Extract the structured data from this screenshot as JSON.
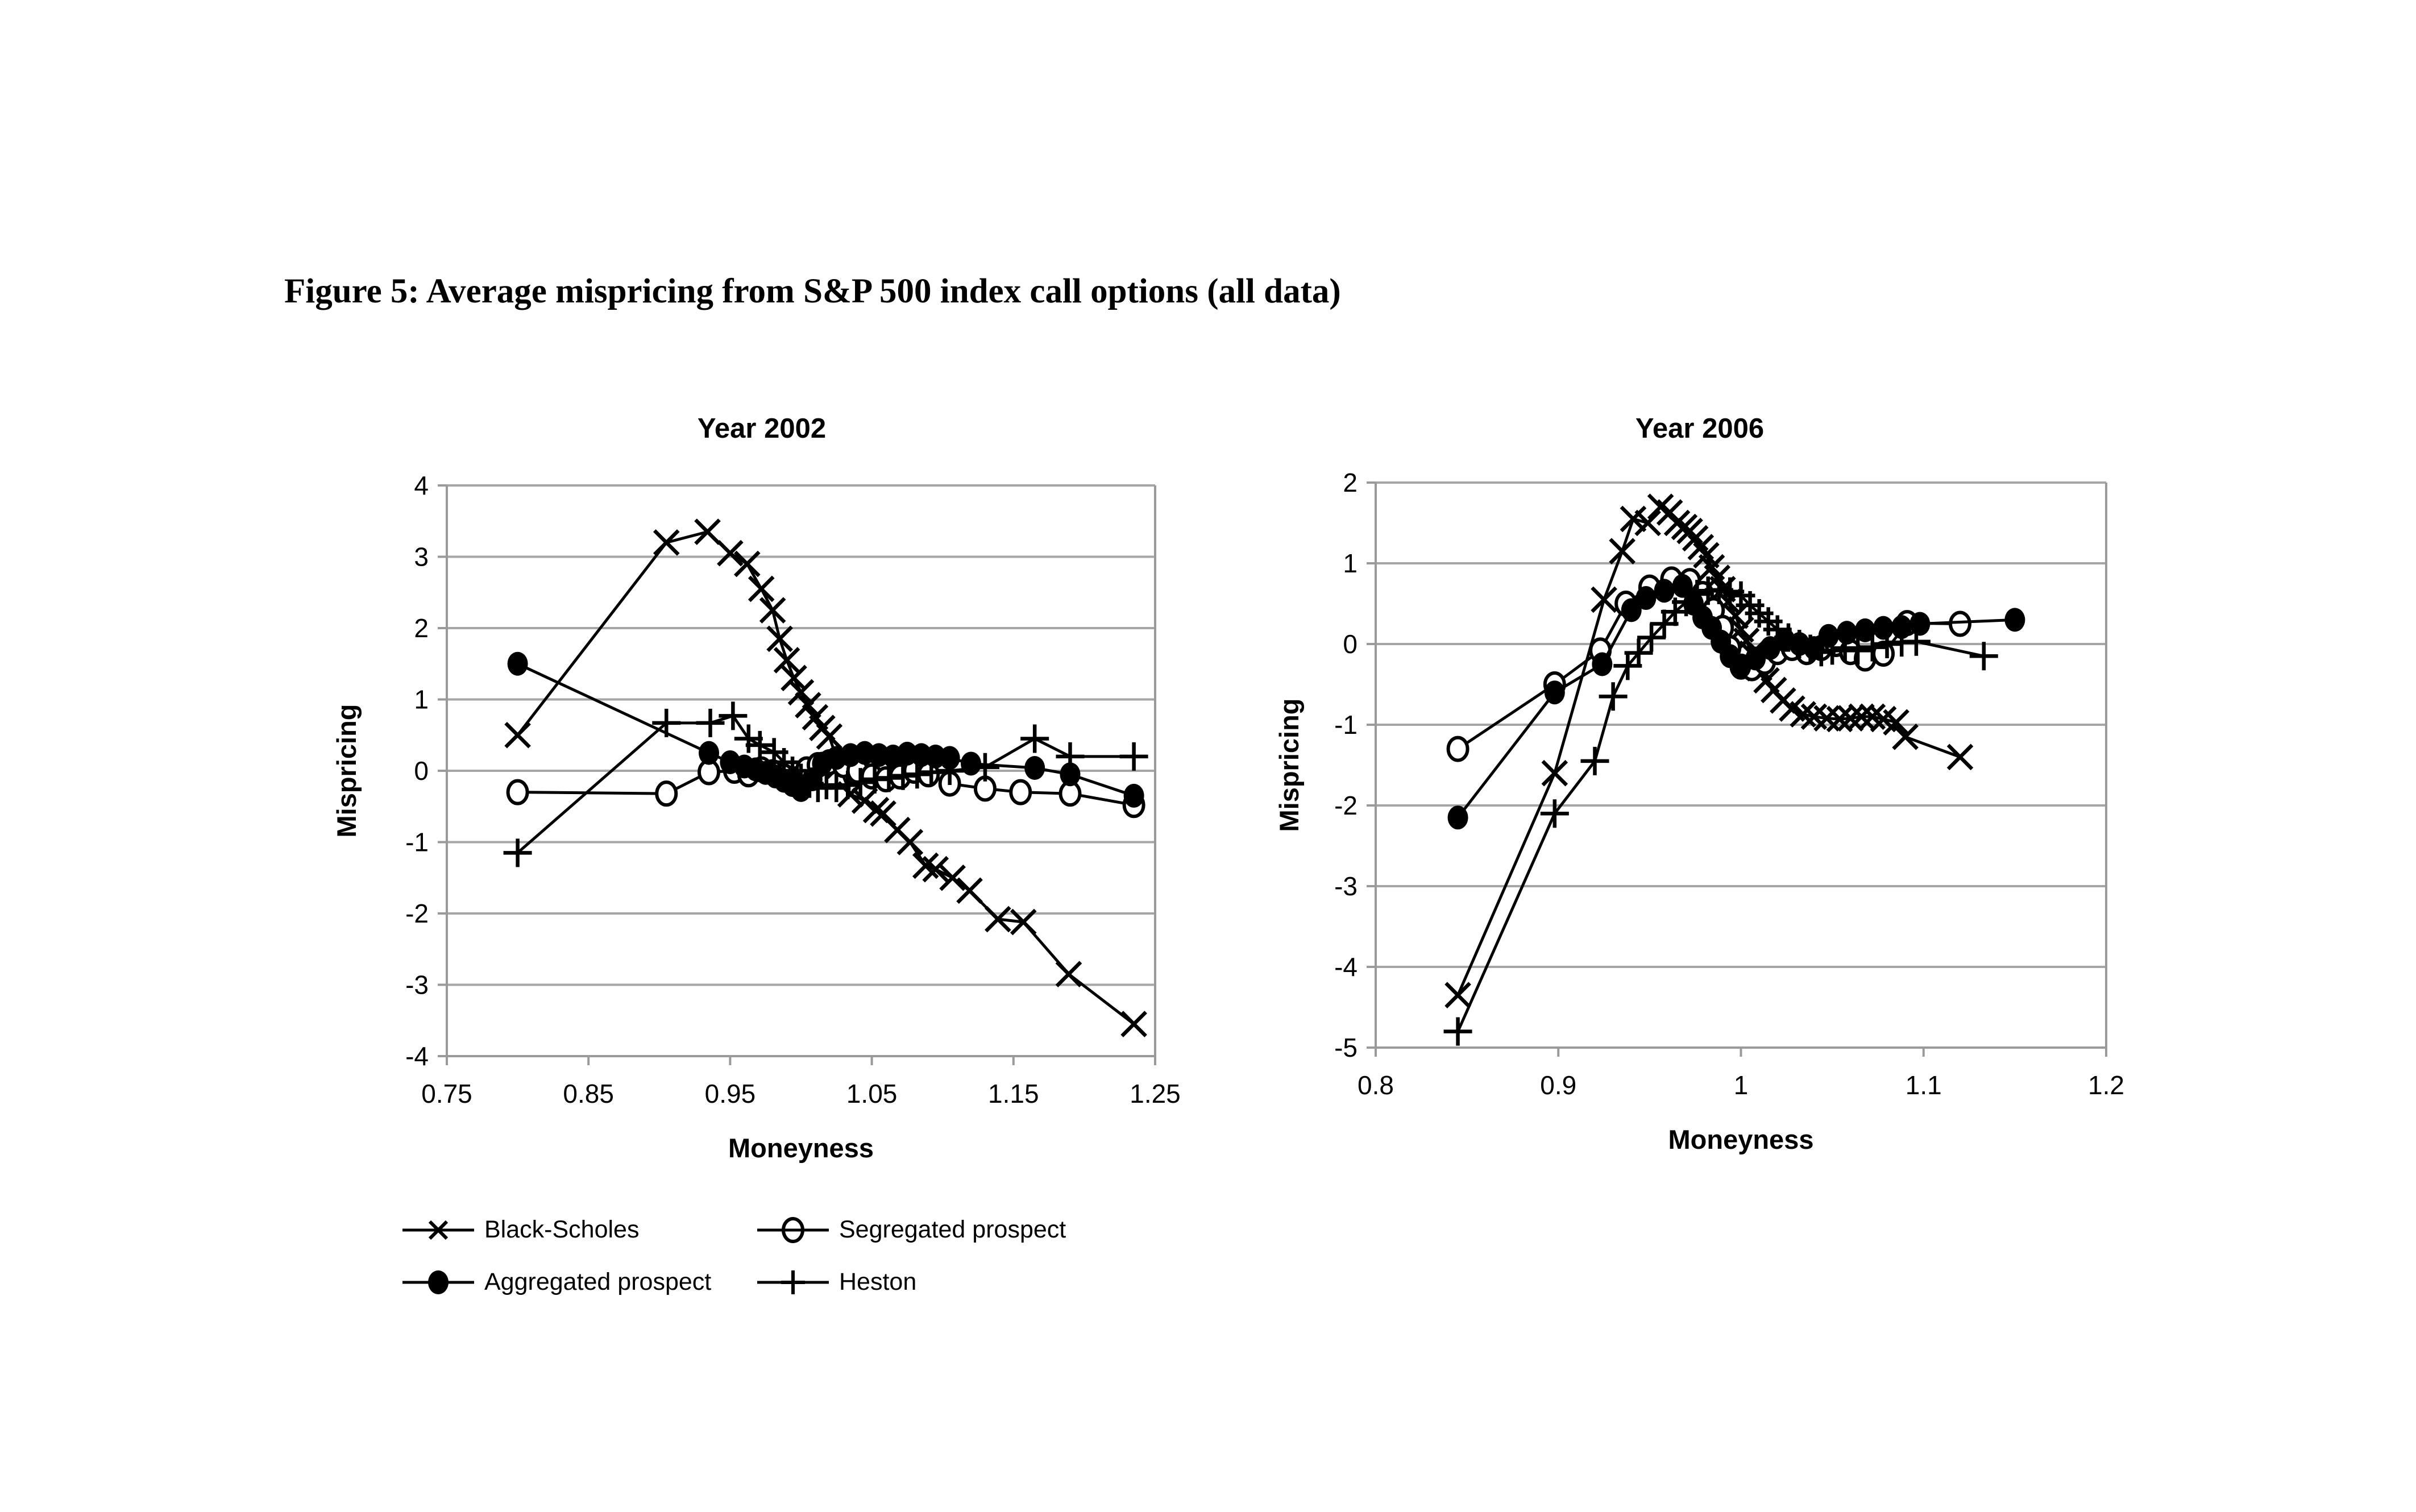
{
  "figure_title": "Figure 5: Average mispricing from S&P 500 index call options (all data)",
  "colors": {
    "series": "#000000",
    "gridline": "#a6a6a6",
    "axis": "#9a9a9a",
    "background": "#ffffff"
  },
  "legend": {
    "items": [
      {
        "label": "Black-Scholes",
        "marker": "x-cross"
      },
      {
        "label": "Segregated prospect",
        "marker": "circle-open"
      },
      {
        "label": "Aggregated prospect",
        "marker": "circle-filled"
      },
      {
        "label": "Heston",
        "marker": "plus"
      }
    ]
  },
  "chart_data": [
    {
      "type": "line",
      "title": "Year 2002",
      "xlabel": "Moneyness",
      "ylabel": "Mispricing",
      "xlim": [
        0.75,
        1.25
      ],
      "ylim": [
        -4,
        4
      ],
      "xticks": [
        0.75,
        0.85,
        0.95,
        1.05,
        1.15,
        1.25
      ],
      "xtick_labels": [
        "0.75",
        "0.85",
        "0.95",
        "1.05",
        "1.15",
        "1.25"
      ],
      "yticks": [
        4,
        3,
        2,
        1,
        0,
        -1,
        -2,
        -3,
        -4
      ],
      "ytick_labels": [
        "4",
        "3",
        "2",
        "1",
        "0",
        "-1",
        "-2",
        "-3",
        "-4"
      ],
      "grid": "horizontal",
      "legend_position": "below-left",
      "series": [
        {
          "name": "Black-Scholes",
          "marker": "x-cross",
          "points": [
            [
              0.8,
              0.5
            ],
            [
              0.905,
              3.2
            ],
            [
              0.934,
              3.35
            ],
            [
              0.95,
              3.05
            ],
            [
              0.962,
              2.9
            ],
            [
              0.972,
              2.55
            ],
            [
              0.98,
              2.25
            ],
            [
              0.985,
              1.85
            ],
            [
              0.99,
              1.55
            ],
            [
              0.995,
              1.3
            ],
            [
              1.0,
              1.1
            ],
            [
              1.005,
              0.92
            ],
            [
              1.01,
              0.75
            ],
            [
              1.015,
              0.6
            ],
            [
              1.02,
              0.48
            ],
            [
              1.027,
              0.07
            ],
            [
              1.035,
              -0.33
            ],
            [
              1.045,
              -0.42
            ],
            [
              1.053,
              -0.55
            ],
            [
              1.058,
              -0.6
            ],
            [
              1.068,
              -0.83
            ],
            [
              1.077,
              -1.0
            ],
            [
              1.088,
              -1.33
            ],
            [
              1.095,
              -1.38
            ],
            [
              1.107,
              -1.5
            ],
            [
              1.119,
              -1.68
            ],
            [
              1.139,
              -2.08
            ],
            [
              1.157,
              -2.12
            ],
            [
              1.189,
              -2.85
            ],
            [
              1.235,
              -3.55
            ]
          ]
        },
        {
          "name": "Segregated prospect",
          "marker": "circle-open",
          "points": [
            [
              0.8,
              -0.3
            ],
            [
              0.905,
              -0.32
            ],
            [
              0.935,
              -0.02
            ],
            [
              0.953,
              0.0
            ],
            [
              0.963,
              -0.05
            ],
            [
              0.972,
              0.02
            ],
            [
              0.98,
              -0.02
            ],
            [
              0.988,
              -0.08
            ],
            [
              0.996,
              -0.12
            ],
            [
              1.004,
              0.02
            ],
            [
              1.012,
              0.08
            ],
            [
              1.02,
              0.12
            ],
            [
              1.03,
              0.08
            ],
            [
              1.04,
              0.0
            ],
            [
              1.05,
              -0.08
            ],
            [
              1.06,
              -0.12
            ],
            [
              1.07,
              -0.08
            ],
            [
              1.08,
              0.0
            ],
            [
              1.09,
              -0.05
            ],
            [
              1.105,
              -0.18
            ],
            [
              1.13,
              -0.25
            ],
            [
              1.155,
              -0.3
            ],
            [
              1.19,
              -0.32
            ],
            [
              1.235,
              -0.48
            ]
          ]
        },
        {
          "name": "Aggregated prospect",
          "marker": "circle-filled",
          "points": [
            [
              0.8,
              1.5
            ],
            [
              0.935,
              0.25
            ],
            [
              0.95,
              0.12
            ],
            [
              0.96,
              0.06
            ],
            [
              0.968,
              0.02
            ],
            [
              0.975,
              -0.03
            ],
            [
              0.982,
              -0.08
            ],
            [
              0.988,
              -0.14
            ],
            [
              0.994,
              -0.2
            ],
            [
              1.0,
              -0.27
            ],
            [
              1.008,
              -0.12
            ],
            [
              1.015,
              0.1
            ],
            [
              1.025,
              0.18
            ],
            [
              1.035,
              0.22
            ],
            [
              1.045,
              0.25
            ],
            [
              1.055,
              0.22
            ],
            [
              1.065,
              0.2
            ],
            [
              1.075,
              0.24
            ],
            [
              1.085,
              0.22
            ],
            [
              1.095,
              0.2
            ],
            [
              1.105,
              0.18
            ],
            [
              1.12,
              0.1
            ],
            [
              1.165,
              0.04
            ],
            [
              1.19,
              -0.05
            ],
            [
              1.235,
              -0.35
            ]
          ]
        },
        {
          "name": "Heston",
          "marker": "plus",
          "points": [
            [
              0.8,
              -1.15
            ],
            [
              0.905,
              0.67
            ],
            [
              0.936,
              0.67
            ],
            [
              0.952,
              0.77
            ],
            [
              0.963,
              0.45
            ],
            [
              0.971,
              0.36
            ],
            [
              0.981,
              0.26
            ],
            [
              0.988,
              0.12
            ],
            [
              0.994,
              0.0
            ],
            [
              1.0,
              -0.1
            ],
            [
              1.006,
              -0.18
            ],
            [
              1.012,
              -0.24
            ],
            [
              1.018,
              -0.2
            ],
            [
              1.025,
              -0.24
            ],
            [
              1.033,
              -0.2
            ],
            [
              1.042,
              -0.16
            ],
            [
              1.052,
              -0.12
            ],
            [
              1.062,
              -0.1
            ],
            [
              1.072,
              -0.07
            ],
            [
              1.082,
              -0.05
            ],
            [
              1.092,
              -0.02
            ],
            [
              1.105,
              0.0
            ],
            [
              1.13,
              0.05
            ],
            [
              1.165,
              0.45
            ],
            [
              1.19,
              0.2
            ],
            [
              1.235,
              0.2
            ]
          ]
        }
      ]
    },
    {
      "type": "line",
      "title": "Year 2006",
      "xlabel": "Moneyness",
      "ylabel": "Mispricing",
      "xlim": [
        0.8,
        1.2
      ],
      "ylim": [
        -5,
        2
      ],
      "xticks": [
        0.8,
        0.9,
        1.0,
        1.1,
        1.2
      ],
      "xtick_labels": [
        "0.8",
        "0.9",
        "1",
        "1.1",
        "1.2"
      ],
      "yticks": [
        2,
        1,
        0,
        -1,
        -2,
        -3,
        -4,
        -5
      ],
      "ytick_labels": [
        "2",
        "1",
        "0",
        "-1",
        "-2",
        "-3",
        "-4",
        "-5"
      ],
      "grid": "horizontal",
      "legend_position": "none",
      "series": [
        {
          "name": "Black-Scholes",
          "marker": "x-cross",
          "points": [
            [
              0.845,
              -4.35
            ],
            [
              0.898,
              -1.6
            ],
            [
              0.925,
              0.55
            ],
            [
              0.935,
              1.15
            ],
            [
              0.941,
              1.55
            ],
            [
              0.949,
              1.5
            ],
            [
              0.956,
              1.7
            ],
            [
              0.961,
              1.63
            ],
            [
              0.965,
              1.5
            ],
            [
              0.969,
              1.45
            ],
            [
              0.972,
              1.4
            ],
            [
              0.975,
              1.31
            ],
            [
              0.978,
              1.2
            ],
            [
              0.981,
              1.1
            ],
            [
              0.984,
              0.95
            ],
            [
              0.987,
              0.82
            ],
            [
              0.99,
              0.68
            ],
            [
              0.993,
              0.52
            ],
            [
              0.997,
              0.35
            ],
            [
              1.0,
              0.18
            ],
            [
              1.003,
              0.04
            ],
            [
              1.006,
              -0.12
            ],
            [
              1.01,
              -0.3
            ],
            [
              1.014,
              -0.45
            ],
            [
              1.018,
              -0.57
            ],
            [
              1.023,
              -0.7
            ],
            [
              1.028,
              -0.8
            ],
            [
              1.034,
              -0.87
            ],
            [
              1.04,
              -0.9
            ],
            [
              1.047,
              -0.92
            ],
            [
              1.054,
              -0.93
            ],
            [
              1.06,
              -0.92
            ],
            [
              1.066,
              -0.9
            ],
            [
              1.072,
              -0.9
            ],
            [
              1.078,
              -0.93
            ],
            [
              1.085,
              -0.97
            ],
            [
              1.09,
              -1.15
            ],
            [
              1.12,
              -1.4
            ]
          ]
        },
        {
          "name": "Segregated prospect",
          "marker": "circle-open",
          "points": [
            [
              0.845,
              -1.3
            ],
            [
              0.898,
              -0.5
            ],
            [
              0.923,
              -0.08
            ],
            [
              0.937,
              0.5
            ],
            [
              0.95,
              0.7
            ],
            [
              0.962,
              0.8
            ],
            [
              0.972,
              0.78
            ],
            [
              0.979,
              0.62
            ],
            [
              0.985,
              0.42
            ],
            [
              0.99,
              0.2
            ],
            [
              0.994,
              -0.05
            ],
            [
              1.0,
              -0.28
            ],
            [
              1.006,
              -0.3
            ],
            [
              1.013,
              -0.22
            ],
            [
              1.02,
              -0.1
            ],
            [
              1.028,
              -0.05
            ],
            [
              1.036,
              -0.1
            ],
            [
              1.044,
              -0.05
            ],
            [
              1.052,
              0.0
            ],
            [
              1.06,
              -0.1
            ],
            [
              1.068,
              -0.18
            ],
            [
              1.078,
              -0.12
            ],
            [
              1.091,
              0.26
            ],
            [
              1.12,
              0.25
            ]
          ]
        },
        {
          "name": "Aggregated prospect",
          "marker": "circle-filled",
          "points": [
            [
              0.845,
              -2.15
            ],
            [
              0.898,
              -0.6
            ],
            [
              0.924,
              -0.25
            ],
            [
              0.94,
              0.42
            ],
            [
              0.948,
              0.57
            ],
            [
              0.958,
              0.66
            ],
            [
              0.968,
              0.72
            ],
            [
              0.974,
              0.5
            ],
            [
              0.979,
              0.33
            ],
            [
              0.984,
              0.2
            ],
            [
              0.989,
              0.03
            ],
            [
              0.994,
              -0.15
            ],
            [
              1.0,
              -0.28
            ],
            [
              1.008,
              -0.18
            ],
            [
              1.016,
              -0.05
            ],
            [
              1.024,
              0.05
            ],
            [
              1.032,
              0.0
            ],
            [
              1.04,
              -0.05
            ],
            [
              1.048,
              0.1
            ],
            [
              1.058,
              0.14
            ],
            [
              1.068,
              0.17
            ],
            [
              1.078,
              0.2
            ],
            [
              1.088,
              0.21
            ],
            [
              1.098,
              0.25
            ],
            [
              1.15,
              0.3
            ]
          ]
        },
        {
          "name": "Heston",
          "marker": "plus",
          "points": [
            [
              0.845,
              -4.8
            ],
            [
              0.898,
              -2.1
            ],
            [
              0.92,
              -1.45
            ],
            [
              0.93,
              -0.65
            ],
            [
              0.938,
              -0.27
            ],
            [
              0.944,
              -0.11
            ],
            [
              0.951,
              0.08
            ],
            [
              0.958,
              0.25
            ],
            [
              0.964,
              0.4
            ],
            [
              0.97,
              0.52
            ],
            [
              0.976,
              0.62
            ],
            [
              0.982,
              0.66
            ],
            [
              0.988,
              0.67
            ],
            [
              0.994,
              0.65
            ],
            [
              1.0,
              0.6
            ],
            [
              1.005,
              0.48
            ],
            [
              1.01,
              0.38
            ],
            [
              1.015,
              0.28
            ],
            [
              1.02,
              0.18
            ],
            [
              1.026,
              0.08
            ],
            [
              1.032,
              0.0
            ],
            [
              1.038,
              -0.06
            ],
            [
              1.044,
              -0.1
            ],
            [
              1.05,
              -0.08
            ],
            [
              1.057,
              -0.05
            ],
            [
              1.064,
              -0.08
            ],
            [
              1.072,
              -0.04
            ],
            [
              1.08,
              0.0
            ],
            [
              1.088,
              0.02
            ],
            [
              1.096,
              0.03
            ],
            [
              1.133,
              -0.15
            ]
          ]
        }
      ]
    }
  ]
}
